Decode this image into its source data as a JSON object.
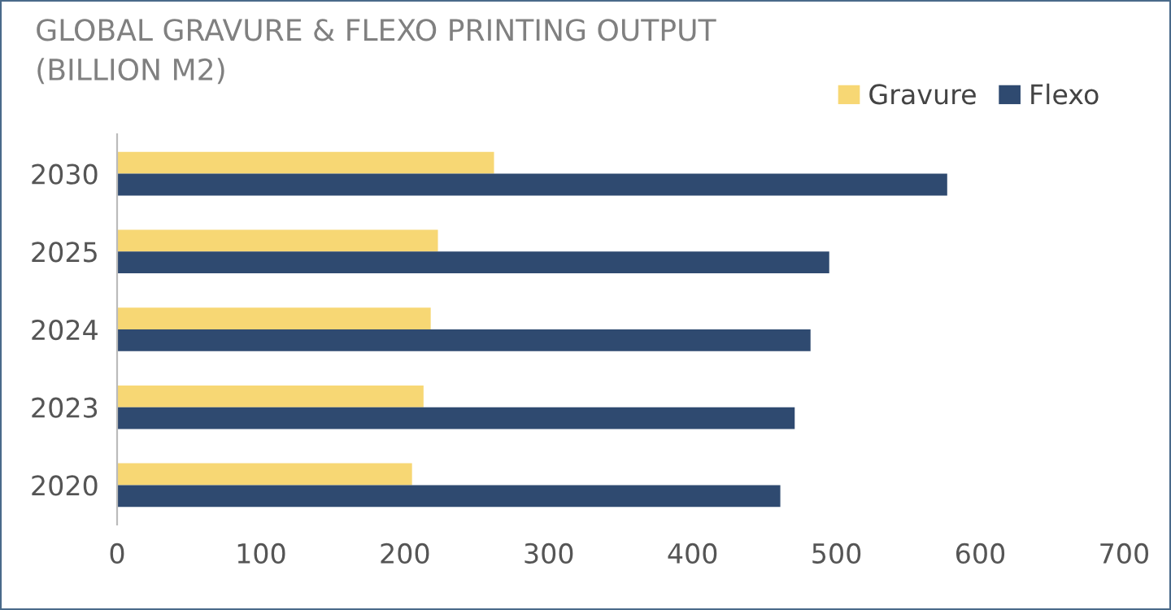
{
  "chart_data": {
    "type": "bar",
    "orientation": "horizontal",
    "title": "GLOBAL GRAVURE & FLEXO PRINTING OUTPUT\n(BILLION M2)",
    "categories": [
      "2030",
      "2025",
      "2024",
      "2023",
      "2020"
    ],
    "series": [
      {
        "name": "Gravure",
        "color": "#f7d774",
        "values": [
          262,
          223,
          218,
          213,
          205
        ]
      },
      {
        "name": "Flexo",
        "color": "#2f4a70",
        "values": [
          577,
          495,
          482,
          471,
          461
        ]
      }
    ],
    "xlim": [
      0,
      700
    ],
    "xticks": [
      0,
      100,
      200,
      300,
      400,
      500,
      600,
      700
    ],
    "grid": false,
    "legend": "top right"
  }
}
